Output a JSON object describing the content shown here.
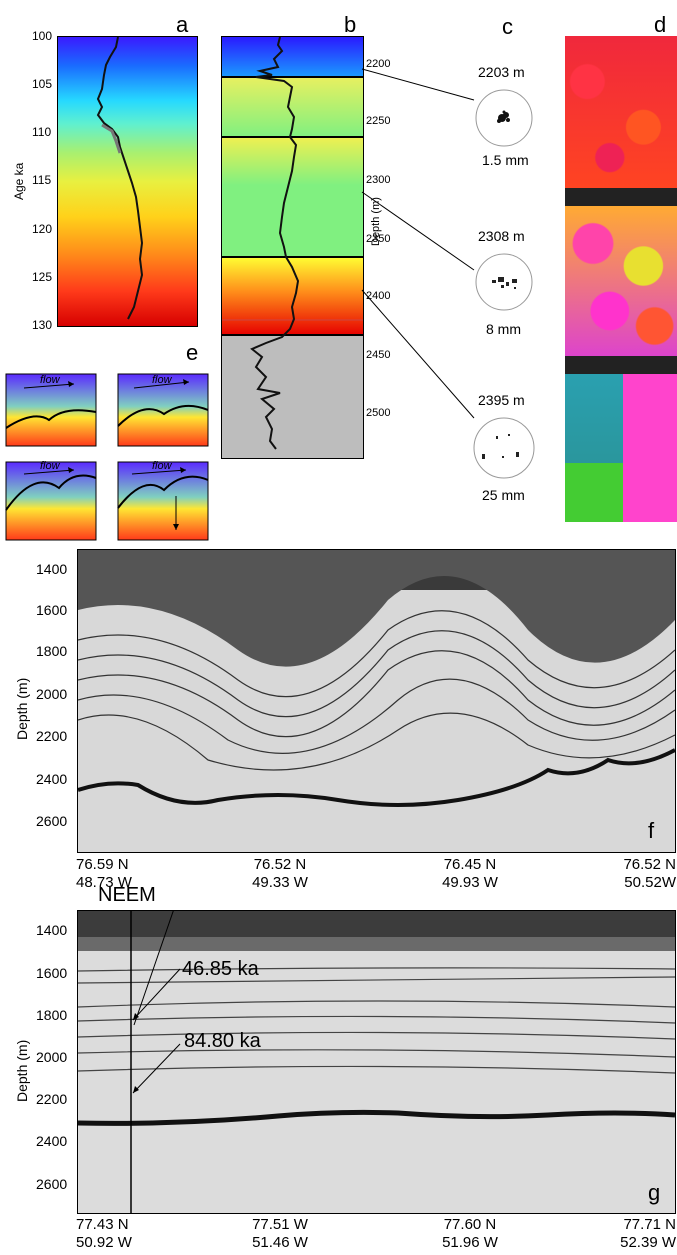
{
  "panels": {
    "a": {
      "letter": "a",
      "ylabel": "Age ka",
      "ticks": [
        "100",
        "105",
        "110",
        "115",
        "120",
        "125",
        "130"
      ]
    },
    "b": {
      "letter": "b",
      "ylabel": "Depth (m)",
      "ticks": [
        "2200",
        "2250",
        "2300",
        "2350",
        "2400",
        "2450",
        "2500"
      ]
    },
    "c": {
      "letter": "c",
      "samples": [
        {
          "depth": "2203 m",
          "size": "1.5 mm"
        },
        {
          "depth": "2308 m",
          "size": "8 mm"
        },
        {
          "depth": "2395 m",
          "size": "25 mm"
        }
      ]
    },
    "d": {
      "letter": "d"
    },
    "e": {
      "letter": "e",
      "sketch_labels": [
        "flow",
        "flow",
        "flow",
        "flow"
      ]
    },
    "f": {
      "letter": "f",
      "ylabel": "Depth (m)",
      "ticks": [
        "1400",
        "1600",
        "1800",
        "2000",
        "2200",
        "2400",
        "2600"
      ],
      "xticks": [
        {
          "lat": "76.59 N",
          "lon": "48.73 W"
        },
        {
          "lat": "76.52 N",
          "lon": "49.33 W"
        },
        {
          "lat": "76.45 N",
          "lon": "49.93 W"
        },
        {
          "lat": "76.52 N",
          "lon": "50.52W"
        }
      ]
    },
    "g": {
      "letter": "g",
      "ylabel": "Depth (m)",
      "site": "NEEM",
      "annotations": [
        "46.85 ka",
        "84.80 ka"
      ],
      "ticks": [
        "1400",
        "1600",
        "1800",
        "2000",
        "2200",
        "2400",
        "2600"
      ],
      "xticks": [
        {
          "lat": "77.43 N",
          "lon": "50.92 W"
        },
        {
          "lat": "77.51 W",
          "lon": "51.46 W"
        },
        {
          "lat": "77.60 N",
          "lon": "51.96 W"
        },
        {
          "lat": "77.71 N",
          "lon": "52.39 W"
        }
      ]
    }
  },
  "colors": {
    "blue": "#1a1aff",
    "cyan": "#26d9ff",
    "green": "#80f080",
    "yellow": "#ffff33",
    "orange": "#ff8c1a",
    "red": "#e60000",
    "grey": "#bdbdbd"
  }
}
